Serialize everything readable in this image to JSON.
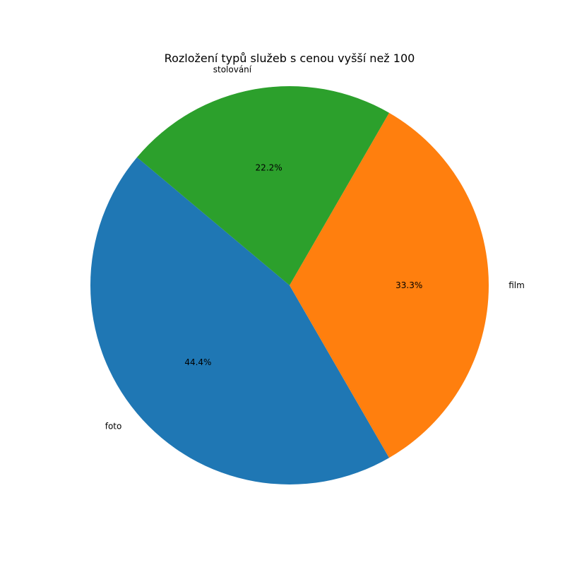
{
  "chart_data": {
    "type": "pie",
    "title": "Rozložení typů služeb s cenou vyšší než 100",
    "categories": [
      "foto",
      "film",
      "stolování"
    ],
    "values": [
      44.4,
      33.3,
      22.2
    ],
    "percent_labels": [
      "44.4%",
      "33.3%",
      "22.2%"
    ],
    "colors": [
      "#1f77b4",
      "#ff7f0e",
      "#2ca02c"
    ],
    "start_angle_deg": 140,
    "direction": "counterclockwise"
  }
}
